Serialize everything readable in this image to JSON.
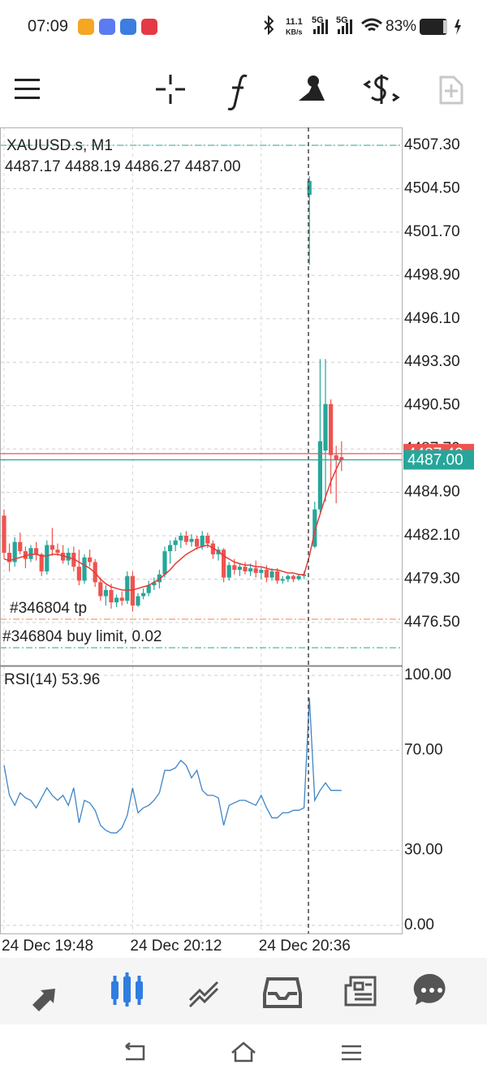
{
  "status_bar": {
    "time": "07:09",
    "net_speed": "11.1",
    "net_unit": "KB/s",
    "signal_1": "5G",
    "signal_2": "5G",
    "battery": "83%"
  },
  "chart_data": [
    {
      "type": "candlestick",
      "title": "XAUUSD.s, M1",
      "ohlc_label": "4487.17 4488.19 4486.27 4487.00",
      "up_color": "#26a69a",
      "down_color": "#ef5350",
      "grid": true,
      "categories": [
        "24 Dec 19:48",
        null,
        null,
        null,
        null,
        null,
        null,
        null,
        null,
        null,
        null,
        null,
        null,
        null,
        null,
        null,
        null,
        null,
        null,
        null,
        null,
        null,
        null,
        null,
        "24 Dec 20:12",
        null,
        null,
        null,
        null,
        null,
        null,
        null,
        null,
        null,
        null,
        null,
        null,
        null,
        null,
        null,
        null,
        null,
        null,
        null,
        null,
        null,
        null,
        null,
        "24 Dec 20:36",
        null,
        null,
        null,
        null,
        null,
        null,
        null,
        null,
        null,
        null,
        null,
        null,
        null,
        null,
        null
      ],
      "open": [
        4483.4,
        4481.0,
        4480.4,
        4481.7,
        4481.1,
        4480.6,
        4481.3,
        4480.9,
        4479.8,
        4481.5,
        4481.2,
        4481.0,
        4480.5,
        4481.0,
        4480.1,
        4479.2,
        4480.7,
        4480.4,
        4479.1,
        4478.2,
        4478.6,
        4477.8,
        4478.1,
        4477.9,
        4479.5,
        4477.6,
        4478.2,
        4478.4,
        4478.9,
        4479.1,
        4479.6,
        4481.1,
        4481.5,
        4481.8,
        4482.1,
        4481.7,
        4481.9,
        4481.4,
        4482.1,
        4481.6,
        4480.9,
        4481.2,
        4479.4,
        4480.2,
        4479.9,
        4480.1,
        4479.8,
        4480.0,
        4479.7,
        4479.9,
        4479.4,
        4479.8,
        4479.2,
        4479.3,
        4479.5,
        4479.3,
        4479.5,
        4504.1,
        4481.4,
        4483.8,
        4487.6,
        4490.6,
        4487.3,
        4487.17
      ],
      "high": [
        4483.8,
        4481.6,
        4482.0,
        4482.3,
        4481.4,
        4481.5,
        4481.7,
        4481.0,
        4481.8,
        4482.6,
        4481.6,
        4481.5,
        4481.3,
        4481.4,
        4481.2,
        4480.9,
        4481.2,
        4480.6,
        4479.4,
        4478.9,
        4479.0,
        4478.3,
        4478.5,
        4479.8,
        4479.8,
        4478.4,
        4478.7,
        4479.2,
        4479.4,
        4479.9,
        4481.4,
        4481.8,
        4482.0,
        4482.3,
        4482.4,
        4482.2,
        4482.1,
        4482.4,
        4482.3,
        4481.8,
        4481.4,
        4481.3,
        4480.4,
        4480.6,
        4480.3,
        4480.4,
        4480.3,
        4480.5,
        4480.1,
        4480.2,
        4480.0,
        4480.0,
        4479.5,
        4479.6,
        4479.6,
        4479.6,
        4479.8,
        4505.3,
        4484.3,
        4493.5,
        4493.5,
        4490.9,
        4487.9,
        4488.19
      ],
      "low": [
        4480.6,
        4479.8,
        4480.1,
        4480.9,
        4480.0,
        4480.4,
        4480.5,
        4479.5,
        4479.6,
        4480.8,
        4480.8,
        4480.3,
        4480.2,
        4479.8,
        4478.9,
        4479.0,
        4480.1,
        4478.8,
        4477.9,
        4477.6,
        4477.4,
        4477.5,
        4477.6,
        4477.7,
        4477.2,
        4477.5,
        4478.0,
        4478.2,
        4478.6,
        4478.7,
        4479.4,
        4480.3,
        4481.1,
        4481.3,
        4481.5,
        4481.4,
        4481.2,
        4481.2,
        4481.3,
        4480.6,
        4480.5,
        4479.1,
        4479.2,
        4479.6,
        4479.5,
        4479.6,
        4479.5,
        4479.4,
        4479.3,
        4479.1,
        4479.2,
        4479.0,
        4479.0,
        4479.1,
        4479.1,
        4479.2,
        4479.3,
        4499.6,
        4481.3,
        4483.6,
        4484.3,
        4484.8,
        4484.2,
        4486.27
      ],
      "close": [
        4481.0,
        4480.4,
        4481.7,
        4481.1,
        4480.6,
        4481.3,
        4480.9,
        4479.8,
        4481.5,
        4481.2,
        4481.0,
        4480.5,
        4481.0,
        4480.1,
        4479.2,
        4480.7,
        4480.4,
        4479.1,
        4478.2,
        4478.6,
        4477.8,
        4478.1,
        4477.9,
        4479.5,
        4477.6,
        4478.2,
        4478.4,
        4478.9,
        4479.1,
        4479.6,
        4481.1,
        4481.5,
        4481.8,
        4482.1,
        4481.7,
        4481.9,
        4481.4,
        4482.1,
        4481.6,
        4480.9,
        4481.2,
        4479.4,
        4480.2,
        4479.9,
        4480.1,
        4479.8,
        4480.0,
        4479.7,
        4479.9,
        4479.4,
        4479.8,
        4479.2,
        4479.3,
        4479.5,
        4479.3,
        4479.5,
        4479.6,
        4505.0,
        4483.8,
        4488.2,
        4490.6,
        4487.3,
        4487.0,
        4487.0
      ],
      "overlay": {
        "color": "#e53935",
        "values": [
          4480.6,
          4480.5,
          4480.6,
          4480.7,
          4480.8,
          4480.9,
          4480.9,
          4480.8,
          4480.8,
          4480.9,
          4480.9,
          4480.8,
          4480.7,
          4480.6,
          4480.4,
          4480.2,
          4480.0,
          4479.7,
          4479.3,
          4479.0,
          4478.8,
          4478.7,
          4478.6,
          4478.6,
          4478.6,
          4478.7,
          4478.8,
          4478.9,
          4479.1,
          4479.3,
          4479.6,
          4479.9,
          4480.3,
          4480.6,
          4480.9,
          4481.1,
          4481.3,
          4481.4,
          4481.5,
          4481.3,
          4481.1,
          4480.8,
          4480.6,
          4480.4,
          4480.3,
          4480.2,
          4480.2,
          4480.1,
          4480.1,
          4480.0,
          4479.9,
          4479.9,
          4479.8,
          4479.7,
          4479.7,
          4479.6,
          4479.6,
          4480.8,
          4482.4,
          4483.5,
          4484.6,
          4485.6,
          4486.4,
          4487.1
        ]
      },
      "ylim": [
        4473.72,
        4508.45
      ],
      "yticks": [
        {
          "value": 4507.3,
          "label": "4507.30"
        },
        {
          "value": 4504.5,
          "label": "4504.50"
        },
        {
          "value": 4501.7,
          "label": "4501.70"
        },
        {
          "value": 4498.9,
          "label": "4498.90"
        },
        {
          "value": 4496.1,
          "label": "4496.10"
        },
        {
          "value": 4493.3,
          "label": "4493.30"
        },
        {
          "value": 4490.5,
          "label": "4490.50"
        },
        {
          "value": 4487.7,
          "label": "4487.70"
        },
        {
          "value": 4484.9,
          "label": "4484.90"
        },
        {
          "value": 4482.1,
          "label": "4482.10"
        },
        {
          "value": 4479.3,
          "label": "4479.30"
        },
        {
          "value": 4476.5,
          "label": "4476.50"
        }
      ],
      "levels": [
        {
          "value": 4507.3,
          "color": "#26a69a"
        },
        {
          "label": "#346804 tp",
          "value": 4476.71,
          "color": "#ff7f50"
        },
        {
          "label": "#346804 buy limit, 0.02",
          "value": 4474.87,
          "color": "#26a69a"
        }
      ],
      "ask": {
        "value": 4487.4,
        "label": "4487.40",
        "color": "#ef5350"
      },
      "bid": {
        "value": 4487,
        "label": "4487.00",
        "color": "#26a69a"
      }
    },
    {
      "type": "line",
      "title": "RSI(14) 53.96",
      "color": "#3d85c6",
      "values": [
        64,
        52,
        48,
        53,
        51,
        50,
        47,
        51,
        55,
        52,
        50,
        52,
        48,
        55,
        41,
        50,
        49,
        46,
        40,
        38,
        37,
        37,
        39,
        44,
        55,
        45,
        47,
        48,
        50,
        53,
        62,
        62,
        63,
        66,
        64,
        59,
        62,
        54,
        52,
        52,
        51,
        40,
        48,
        49,
        50,
        50,
        49,
        48,
        52,
        47,
        43,
        43,
        45,
        45,
        46,
        46,
        47,
        91,
        50,
        54,
        57,
        54,
        54,
        53.96
      ],
      "ylim": [
        -3.25,
        103.25
      ],
      "yticks": [
        {
          "value": 100,
          "label": "100.00"
        },
        {
          "value": 70,
          "label": "70.00"
        },
        {
          "value": 30,
          "label": "30.00"
        },
        {
          "value": 0,
          "label": "0.00"
        }
      ]
    }
  ]
}
